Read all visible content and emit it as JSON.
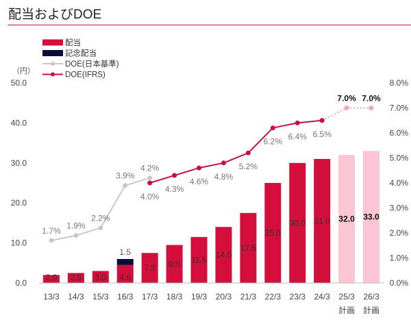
{
  "header": {
    "title": "配当およびDOE"
  },
  "chart_data": {
    "type": "bar",
    "categories": [
      "13/3",
      "14/3",
      "15/3",
      "16/3",
      "17/3",
      "18/3",
      "19/3",
      "20/3",
      "21/3",
      "22/3",
      "23/3",
      "24/3",
      "25/3",
      "26/3"
    ],
    "category_sublabels": [
      "",
      "",
      "",
      "",
      "",
      "",
      "",
      "",
      "",
      "",
      "",
      "",
      "計画",
      "計画"
    ],
    "y_unit_label": "（円）",
    "ylim": [
      0,
      50
    ],
    "y_ticks": [
      "0.0",
      "10.0",
      "20.0",
      "30.0",
      "40.0",
      "50.0"
    ],
    "y2lim": [
      0,
      8
    ],
    "y2_ticks": [
      "0.0%",
      "1.0%",
      "2.0%",
      "3.0%",
      "4.0%",
      "5.0%",
      "6.0%",
      "7.0%",
      "8.0%"
    ],
    "grid": false,
    "legend_position": "top-left",
    "legend": [
      "配当",
      "記念配当",
      "DOE(日本基準)",
      "DOE(IFRS)"
    ],
    "series": [
      {
        "name": "配当",
        "kind": "bar",
        "color": "#d40f3c",
        "plan_color": "#fbc5d3",
        "values": [
          2.0,
          2.5,
          3.0,
          4.5,
          7.5,
          9.5,
          11.5,
          14.0,
          17.5,
          25.0,
          30.0,
          31.0,
          32.0,
          33.0
        ],
        "labels": [
          "2.0",
          "2.5",
          "3.0",
          "4.5",
          "7.5",
          "9.5",
          "11.5",
          "14.0",
          "17.5",
          "25.0",
          "30.0",
          "31.0",
          "32.0",
          "33.0"
        ]
      },
      {
        "name": "記念配当",
        "kind": "bar_stack",
        "color": "#0a0a3c",
        "values": [
          0,
          0,
          0,
          1.5,
          0,
          0,
          0,
          0,
          0,
          0,
          0,
          0,
          0,
          0
        ],
        "labels": [
          "",
          "",
          "",
          "1.5",
          "",
          "",
          "",
          "",
          "",
          "",
          "",
          "",
          "",
          ""
        ]
      },
      {
        "name": "DOE(日本基準)",
        "kind": "line",
        "axis": "right",
        "color": "#c8c8c8",
        "values": [
          1.7,
          1.9,
          2.2,
          3.9,
          4.2,
          null,
          null,
          null,
          null,
          null,
          null,
          null,
          null,
          null
        ],
        "labels": [
          "1.7%",
          "1.9%",
          "2.2%",
          "3.9%",
          "4.2%",
          "",
          "",
          "",
          "",
          "",
          "",
          "",
          "",
          ""
        ]
      },
      {
        "name": "DOE(IFRS)",
        "kind": "line",
        "axis": "right",
        "color": "#c8103e",
        "plan_color": "#f5a3b8",
        "values": [
          null,
          null,
          null,
          null,
          4.0,
          4.3,
          4.6,
          4.8,
          5.2,
          6.2,
          6.4,
          6.5,
          7.0,
          7.0
        ],
        "labels": [
          "",
          "",
          "",
          "",
          "4.0%",
          "4.3%",
          "4.6%",
          "4.8%",
          "5.2%",
          "6.2%",
          "6.4%",
          "6.5%",
          "7.0%",
          "7.0%"
        ]
      }
    ],
    "plan_from_index": 12
  }
}
